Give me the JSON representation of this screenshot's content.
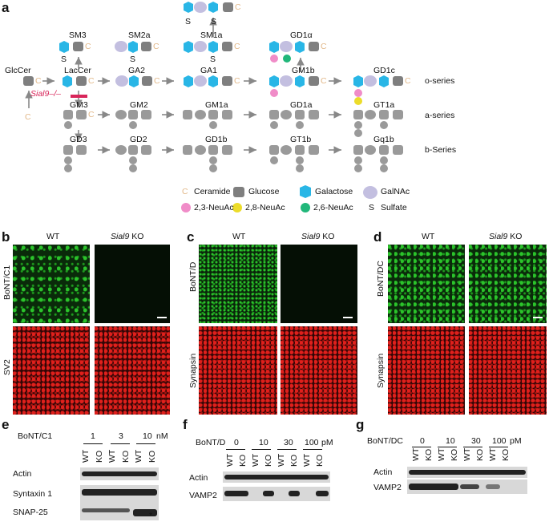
{
  "panels": {
    "a": "a",
    "b": "b",
    "c": "c",
    "d": "d",
    "e": "e",
    "f": "f",
    "g": "g"
  },
  "pathway": {
    "gangliosides": {
      "top": "",
      "sm1a_top": "",
      "glccer": "GlcCer",
      "laccer": "LacCer",
      "sm3": "SM3",
      "sm2a": "SM2a",
      "sm1a": "SM1a",
      "gd1alpha": "GD1α",
      "ga2": "GA2",
      "ga1": "GA1",
      "gm1b": "GM1b",
      "gd1c": "GD1c",
      "gm3": "GM3",
      "gm2": "GM2",
      "gm1a": "GM1a",
      "gd1a": "GD1a",
      "gt1a": "GT1a",
      "gd3": "GD3",
      "gd2": "GD2",
      "gd1b": "GD1b",
      "gt1b": "GT1b",
      "gq1b": "Gq1b"
    },
    "series": {
      "o": "o-series",
      "a": "a-series",
      "b": "b-Series"
    },
    "knockout": "Sial9–/–",
    "sulfate_s": "S",
    "ceramide_c": "C",
    "legend": {
      "ceramide": "Ceramide",
      "glucose": "Glucose",
      "galactose": "Galactose",
      "galnac": "GalNAc",
      "neuac23": "2,3-NeuAc",
      "neuac28": "2,8-NeuAc",
      "neuac26": "2,6-NeuAc",
      "sulfate_symbol": "S",
      "sulfate": "Sulfate"
    },
    "colors": {
      "glucose": "#7f7f7f",
      "galactose": "#29b6e6",
      "galnac": "#c3bfe0",
      "neuac23": "#f08cc8",
      "neuac28": "#ecdc2a",
      "neuac26": "#21b77a",
      "ceramide": "#e2b98a",
      "knockout": "#d8265a",
      "gray_path": "#9a9a9a"
    }
  },
  "micrographs": {
    "wt": "WT",
    "ko_gene": "Sial9",
    "ko": "KO",
    "b_top": "BoNT/C1",
    "b_bottom": "SV2",
    "c_top": "BoNT/D",
    "c_bottom": "Synapsin",
    "d_top": "BoNT/DC",
    "d_bottom": "Synapsin",
    "colors": {
      "green": "#2bc42b",
      "red": "#e0201c"
    }
  },
  "blots": {
    "e": {
      "toxin": "BoNT/C1",
      "concs": [
        "1",
        "3",
        "10"
      ],
      "unit": "nM",
      "lanes": [
        "WT",
        "KO",
        "WT",
        "KO",
        "WT",
        "KO"
      ],
      "rows": [
        "Actin",
        "Syntaxin 1",
        "SNAP-25"
      ],
      "asterisk": "*"
    },
    "f": {
      "toxin": "BoNT/D",
      "concs": [
        "0",
        "10",
        "30",
        "100"
      ],
      "unit": "pM",
      "lanes": [
        "WT",
        "KO",
        "WT",
        "KO",
        "WT",
        "KO",
        "WT",
        "KO"
      ],
      "rows": [
        "Actin",
        "VAMP2"
      ]
    },
    "g": {
      "toxin": "BoNT/DC",
      "concs": [
        "0",
        "10",
        "30",
        "100"
      ],
      "unit": "pM",
      "lanes": [
        "WT",
        "KO",
        "WT",
        "KO",
        "WT",
        "KO",
        "WT",
        "KO"
      ],
      "rows": [
        "Actin",
        "VAMP2"
      ]
    }
  }
}
